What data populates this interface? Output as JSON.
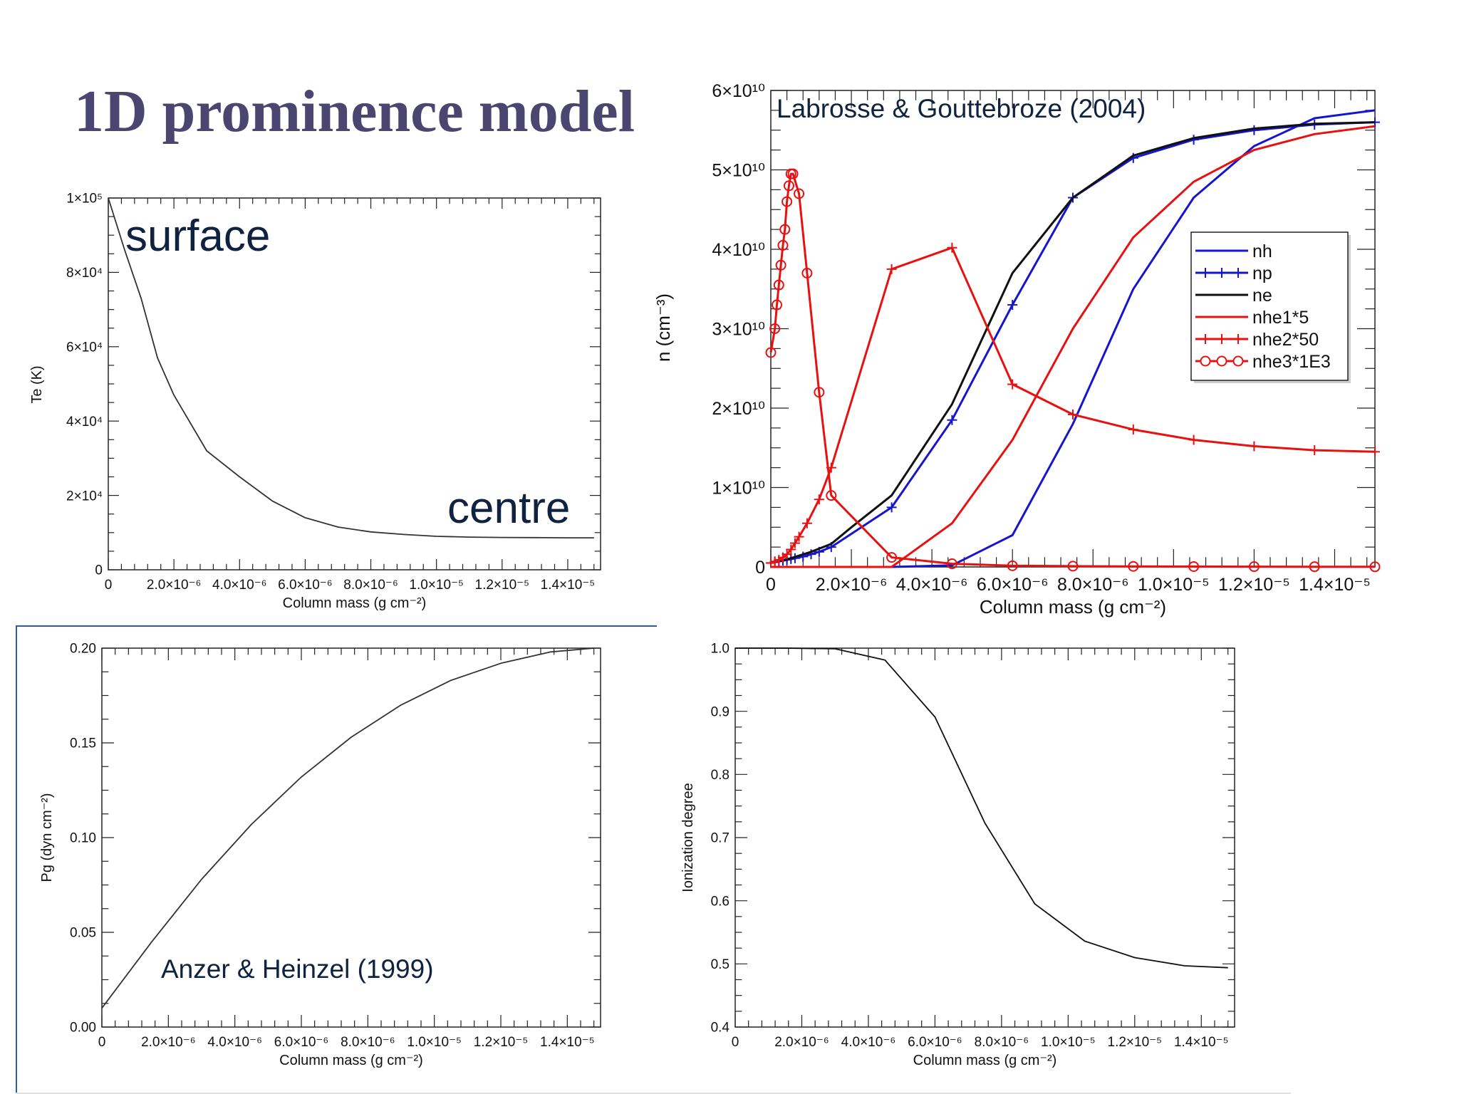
{
  "slide": {
    "title": "1D prominence model",
    "accent_color": "#4a4670",
    "frame_color": "#2f5f95"
  },
  "chart_data": [
    {
      "id": "temperature",
      "type": "line",
      "xlabel": "Column mass (g cm⁻²)",
      "ylabel": "Te (K)",
      "xlim": [
        0,
        1.5e-05
      ],
      "ylim": [
        0,
        100000
      ],
      "x_tick_labels": [
        "0",
        "2.0×10⁻⁶",
        "4.0×10⁻⁶",
        "6.0×10⁻⁶",
        "8.0×10⁻⁶",
        "1.0×10⁻⁵",
        "1.2×10⁻⁵",
        "1.4×10⁻⁵"
      ],
      "y_tick_labels": [
        "0",
        "2×10⁴",
        "4×10⁴",
        "6×10⁴",
        "8×10⁴",
        "1×10⁵"
      ],
      "annotations": [
        "surface",
        "centre"
      ],
      "series": [
        {
          "color": "#333333",
          "x": [
            0,
            5e-07,
            1e-06,
            1.5e-06,
            2e-06,
            3e-06,
            4e-06,
            5e-06,
            6e-06,
            7e-06,
            8e-06,
            9e-06,
            1e-05,
            1.1e-05,
            1.2e-05,
            1.3e-05,
            1.4e-05,
            1.48e-05
          ],
          "y": [
            100000,
            86000,
            73000,
            57000,
            47000,
            32000,
            25000,
            18500,
            14000,
            11500,
            10200,
            9500,
            9000,
            8800,
            8700,
            8650,
            8600,
            8600
          ]
        }
      ]
    },
    {
      "id": "densities",
      "type": "line",
      "title": "Labrosse & Gouttebroze (2004)",
      "xlabel": "Column mass (g cm⁻²)",
      "ylabel": "n (cm⁻³)",
      "xlim": [
        0,
        1.5e-05
      ],
      "ylim": [
        0,
        60000000000.0
      ],
      "x_tick_labels": [
        "0",
        "2.0×10⁻⁶",
        "4.0×10⁻⁶",
        "6.0×10⁻⁶",
        "8.0×10⁻⁶",
        "1.0×10⁻⁵",
        "1.2×10⁻⁵",
        "1.4×10⁻⁵"
      ],
      "y_tick_labels": [
        "0",
        "1×10¹⁰",
        "2×10¹⁰",
        "3×10¹⁰",
        "4×10¹⁰",
        "5×10¹⁰",
        "6×10¹⁰"
      ],
      "legend_position": "right",
      "series": [
        {
          "name": "nh",
          "color": "#1515d0",
          "marker": "none",
          "x": [
            0,
            3e-06,
            4.5e-06,
            6e-06,
            7.5e-06,
            9e-06,
            1.05e-05,
            1.2e-05,
            1.35e-05,
            1.5e-05
          ],
          "y": [
            0,
            0,
            200000000.0,
            4000000000.0,
            18000000000.0,
            35000000000.0,
            46500000000.0,
            53000000000.0,
            56500000000.0,
            57500000000.0
          ]
        },
        {
          "name": "np",
          "color": "#1515d0",
          "marker": "plus",
          "x": [
            0,
            1e-07,
            2e-07,
            3e-07,
            4e-07,
            5e-07,
            6e-07,
            8e-07,
            1e-06,
            1.2e-06,
            1.5e-06,
            3e-06,
            4.5e-06,
            6e-06,
            7.5e-06,
            9e-06,
            1.05e-05,
            1.2e-05,
            1.35e-05,
            1.5e-05
          ],
          "y": [
            500000000.0,
            600000000.0,
            700000000.0,
            800000000.0,
            900000000.0,
            1000000000.0,
            1100000000.0,
            1300000000.0,
            1600000000.0,
            1900000000.0,
            2500000000.0,
            7500000000.0,
            18500000000.0,
            33000000000.0,
            46500000000.0,
            51500000000.0,
            53800000000.0,
            55000000000.0,
            55700000000.0,
            56000000000.0
          ]
        },
        {
          "name": "ne",
          "color": "#111111",
          "marker": "none",
          "x": [
            0,
            5e-07,
            1e-06,
            1.5e-06,
            2e-06,
            3e-06,
            4.5e-06,
            6e-06,
            7.5e-06,
            9e-06,
            1.05e-05,
            1.2e-05,
            1.35e-05,
            1.5e-05
          ],
          "y": [
            500000000.0,
            1100000000.0,
            1900000000.0,
            2900000000.0,
            5000000000.0,
            9000000000.0,
            20500000000.0,
            37000000000.0,
            46500000000.0,
            51800000000.0,
            54000000000.0,
            55200000000.0,
            55800000000.0,
            56000000000.0
          ]
        },
        {
          "name": "nhe1*5",
          "color": "#e81010",
          "marker": "none",
          "x": [
            0,
            3e-06,
            4.5e-06,
            6e-06,
            7.5e-06,
            9e-06,
            1.05e-05,
            1.2e-05,
            1.35e-05,
            1.5e-05
          ],
          "y": [
            0,
            0,
            5500000000.0,
            16000000000.0,
            30000000000.0,
            41500000000.0,
            48500000000.0,
            52500000000.0,
            54500000000.0,
            55500000000.0
          ]
        },
        {
          "name": "nhe2*50",
          "color": "#e81010",
          "marker": "plus",
          "x": [
            0,
            1e-07,
            2e-07,
            3e-07,
            4e-07,
            5e-07,
            6e-07,
            7e-07,
            9e-07,
            1.2e-06,
            1.5e-06,
            3e-06,
            4.5e-06,
            6e-06,
            7.5e-06,
            9e-06,
            1.05e-05,
            1.2e-05,
            1.35e-05,
            1.5e-05
          ],
          "y": [
            500000000.0,
            700000000.0,
            900000000.0,
            1200000000.0,
            1600000000.0,
            2200000000.0,
            3000000000.0,
            3800000000.0,
            5500000000.0,
            8500000000.0,
            12500000000.0,
            37500000000.0,
            40200000000.0,
            23000000000.0,
            19200000000.0,
            17300000000.0,
            16000000000.0,
            15200000000.0,
            14700000000.0,
            14500000000.0
          ]
        },
        {
          "name": "nhe3*1E3",
          "color": "#e81010",
          "marker": "circle",
          "x": [
            0,
            1e-07,
            1.5e-07,
            2e-07,
            2.5e-07,
            3e-07,
            3.5e-07,
            4e-07,
            4.5e-07,
            5e-07,
            5.5e-07,
            7e-07,
            9e-07,
            1.2e-06,
            1.5e-06,
            3e-06,
            4.5e-06,
            6e-06,
            7.5e-06,
            9e-06,
            1.05e-05,
            1.2e-05,
            1.35e-05,
            1.5e-05
          ],
          "y": [
            27000000000.0,
            30000000000.0,
            33000000000.0,
            35500000000.0,
            38000000000.0,
            40500000000.0,
            42500000000.0,
            46000000000.0,
            48000000000.0,
            49500000000.0,
            49500000000.0,
            47000000000.0,
            37000000000.0,
            22000000000.0,
            9000000000.0,
            1200000000.0,
            400000000.0,
            150000000.0,
            100000000.0,
            70000000.0,
            50000000.0,
            40000000.0,
            30000000.0,
            20000000.0
          ],
          "marker_x": [
            0,
            1e-07,
            1.5e-07,
            2e-07,
            2.5e-07,
            3e-07,
            3.5e-07,
            4e-07,
            4.5e-07,
            5e-07,
            5.5e-07,
            7e-07,
            9e-07,
            1.2e-06,
            1.5e-06,
            3e-06,
            4.5e-06,
            6e-06,
            7.5e-06,
            9e-06,
            1.05e-05,
            1.2e-05,
            1.35e-05,
            1.5e-05
          ]
        }
      ]
    },
    {
      "id": "pressure",
      "type": "line",
      "xlabel": "Column mass (g cm⁻²)",
      "ylabel": "Pg (dyn cm⁻²)",
      "xlim": [
        0,
        1.5e-05
      ],
      "ylim": [
        0,
        0.2
      ],
      "x_tick_labels": [
        "0",
        "2.0×10⁻⁶",
        "4.0×10⁻⁶",
        "6.0×10⁻⁶",
        "8.0×10⁻⁶",
        "1.0×10⁻⁵",
        "1.2×10⁻⁵",
        "1.4×10⁻⁵"
      ],
      "y_tick_labels": [
        "0.00",
        "0.05",
        "0.10",
        "0.15",
        "0.20"
      ],
      "annotations": [
        "Anzer & Heinzel (1999)"
      ],
      "series": [
        {
          "color": "#333333",
          "x": [
            0,
            1.5e-06,
            3e-06,
            4.5e-06,
            6e-06,
            7.5e-06,
            9e-06,
            1.05e-05,
            1.2e-05,
            1.35e-05,
            1.48e-05
          ],
          "y": [
            0.01,
            0.045,
            0.078,
            0.107,
            0.132,
            0.153,
            0.17,
            0.183,
            0.192,
            0.198,
            0.2
          ]
        }
      ]
    },
    {
      "id": "ionization",
      "type": "line",
      "xlabel": "Column mass (g cm⁻²)",
      "ylabel": "Ionization degree",
      "xlim": [
        0,
        1.5e-05
      ],
      "ylim": [
        0.4,
        1.0
      ],
      "x_tick_labels": [
        "0",
        "2.0×10⁻⁶",
        "4.0×10⁻⁶",
        "6.0×10⁻⁶",
        "8.0×10⁻⁶",
        "1.0×10⁻⁵",
        "1.2×10⁻⁵",
        "1.4×10⁻⁵"
      ],
      "y_tick_labels": [
        "0.4",
        "0.5",
        "0.6",
        "0.7",
        "0.8",
        "0.9",
        "1.0"
      ],
      "series": [
        {
          "color": "#111111",
          "x": [
            0,
            1.5e-06,
            3e-06,
            4.5e-06,
            6e-06,
            7.5e-06,
            9e-06,
            1.05e-05,
            1.2e-05,
            1.35e-05,
            1.48e-05
          ],
          "y": [
            1.0,
            1.0,
            0.999,
            0.981,
            0.891,
            0.723,
            0.595,
            0.536,
            0.51,
            0.497,
            0.494
          ]
        }
      ]
    }
  ]
}
